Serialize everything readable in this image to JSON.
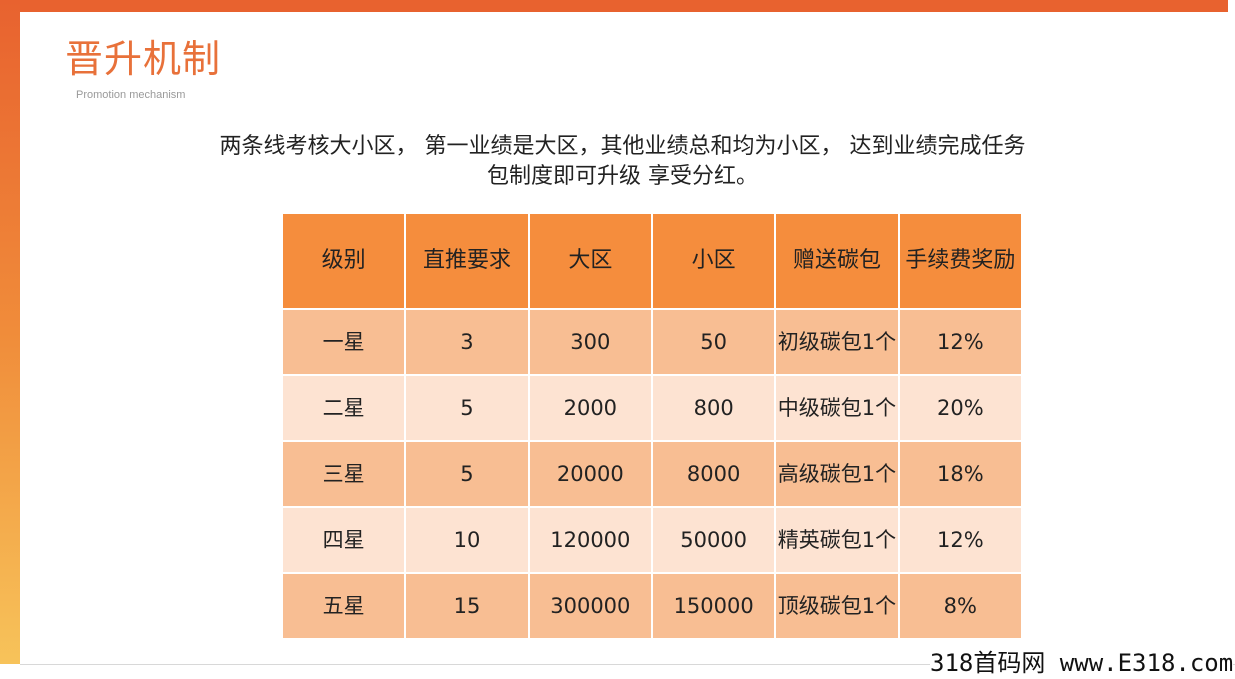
{
  "header": {
    "title": "晋升机制",
    "subtitle": "Promotion mechanism"
  },
  "intro": {
    "line1": "两条线考核大小区， 第一业绩是大区，其他业绩总和均为小区， 达到业绩完成任务",
    "line2": "包制度即可升级  享受分红。"
  },
  "table": {
    "headers": [
      "级别",
      "直推要求",
      "大区",
      "小区",
      "赠送碳包",
      "手续费奖励"
    ],
    "rows": [
      {
        "level": "一星",
        "direct": "3",
        "big_zone": "300",
        "small_zone": "50",
        "gift": "初级碳包1个",
        "fee_reward": "12%"
      },
      {
        "level": "二星",
        "direct": "5",
        "big_zone": "2000",
        "small_zone": "800",
        "gift": "中级碳包1个",
        "fee_reward": "20%"
      },
      {
        "level": "三星",
        "direct": "5",
        "big_zone": "20000",
        "small_zone": "8000",
        "gift": "高级碳包1个",
        "fee_reward": "18%"
      },
      {
        "level": "四星",
        "direct": "10",
        "big_zone": "120000",
        "small_zone": "50000",
        "gift": "精英碳包1个",
        "fee_reward": "12%"
      },
      {
        "level": "五星",
        "direct": "15",
        "big_zone": "300000",
        "small_zone": "150000",
        "gift": "顶级碳包1个",
        "fee_reward": "8%"
      }
    ]
  },
  "watermark": "318首码网 www.E318.com",
  "colors": {
    "accent": "#e8622f",
    "header_cell": "#f58d3d",
    "row_dark": "#f8be93",
    "row_light": "#fde3d2"
  }
}
